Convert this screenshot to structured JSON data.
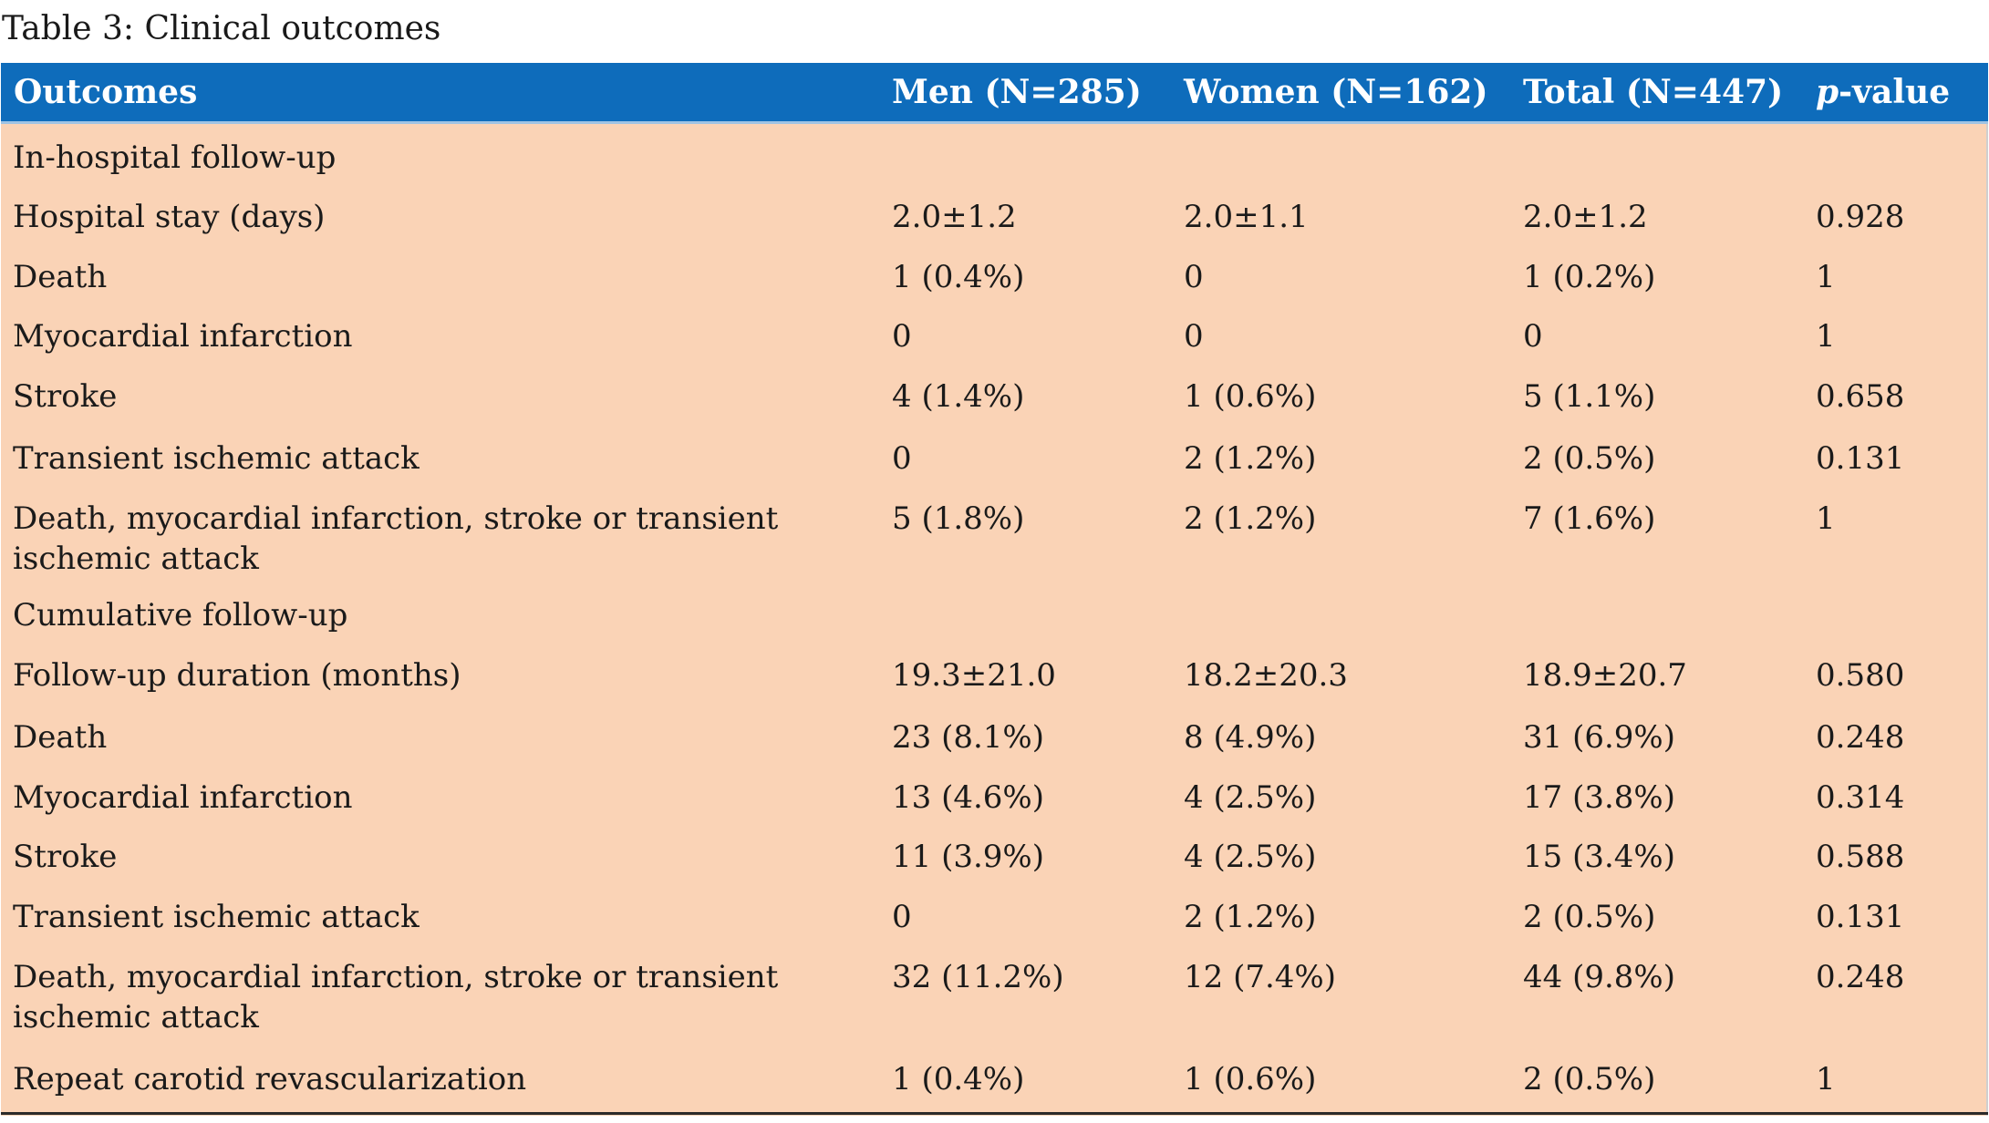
{
  "caption": "Table 3: Clinical outcomes",
  "columns": {
    "outcomes": "Outcomes",
    "men": "Men (N=285)",
    "women": "Women (N=162)",
    "total": "Total (N=447)",
    "p_italic": "p",
    "p_rest": "-value"
  },
  "rows": [
    {
      "label": "In-hospital follow-up",
      "men": "",
      "women": "",
      "total": "",
      "p": ""
    },
    {
      "label": "Hospital stay (days)",
      "men": "2.0±1.2",
      "women": "2.0±1.1",
      "total": "2.0±1.2",
      "p": "0.928"
    },
    {
      "label": "Death",
      "men": "1 (0.4%)",
      "women": "0",
      "total": "1 (0.2%)",
      "p": "1"
    },
    {
      "label": "Myocardial infarction",
      "men": "0",
      "women": "0",
      "total": "0",
      "p": "1"
    },
    {
      "label": "Stroke",
      "men": "4 (1.4%)",
      "women": "1 (0.6%)",
      "total": "5 (1.1%)",
      "p": "0.658"
    },
    {
      "label": "Transient ischemic attack",
      "men": "0",
      "women": "2 (1.2%)",
      "total": "2 (0.5%)",
      "p": "0.131"
    },
    {
      "label": "Death, myocardial infarction, stroke or transient ischemic attack",
      "men": "5 (1.8%)",
      "women": "2 (1.2%)",
      "total": "7 (1.6%)",
      "p": "1"
    },
    {
      "label": "Cumulative follow-up",
      "men": "",
      "women": "",
      "total": "",
      "p": ""
    },
    {
      "label": "Follow-up duration (months)",
      "men": "19.3±21.0",
      "women": "18.2±20.3",
      "total": "18.9±20.7",
      "p": "0.580"
    },
    {
      "label": "Death",
      "men": "23 (8.1%)",
      "women": "8 (4.9%)",
      "total": "31 (6.9%)",
      "p": "0.248"
    },
    {
      "label": "Myocardial infarction",
      "men": "13 (4.6%)",
      "women": "4 (2.5%)",
      "total": "17 (3.8%)",
      "p": "0.314"
    },
    {
      "label": "Stroke",
      "men": "11 (3.9%)",
      "women": "4 (2.5%)",
      "total": "15 (3.4%)",
      "p": "0.588"
    },
    {
      "label": "Transient ischemic attack",
      "men": "0",
      "women": "2 (1.2%)",
      "total": "2 (0.5%)",
      "p": "0.131"
    },
    {
      "label": "Death, myocardial infarction, stroke or transient ischemic attack",
      "men": "32 (11.2%)",
      "women": "12 (7.4%)",
      "total": "44 (9.8%)",
      "p": "0.248"
    },
    {
      "label": "Repeat carotid revascularization",
      "men": "1 (0.4%)",
      "women": "1 (0.6%)",
      "total": "2 (0.5%)",
      "p": "1"
    }
  ],
  "colors": {
    "header_bg": "#0e6cbb",
    "body_bg": "#fad3b6",
    "header_text": "#ffffff"
  }
}
